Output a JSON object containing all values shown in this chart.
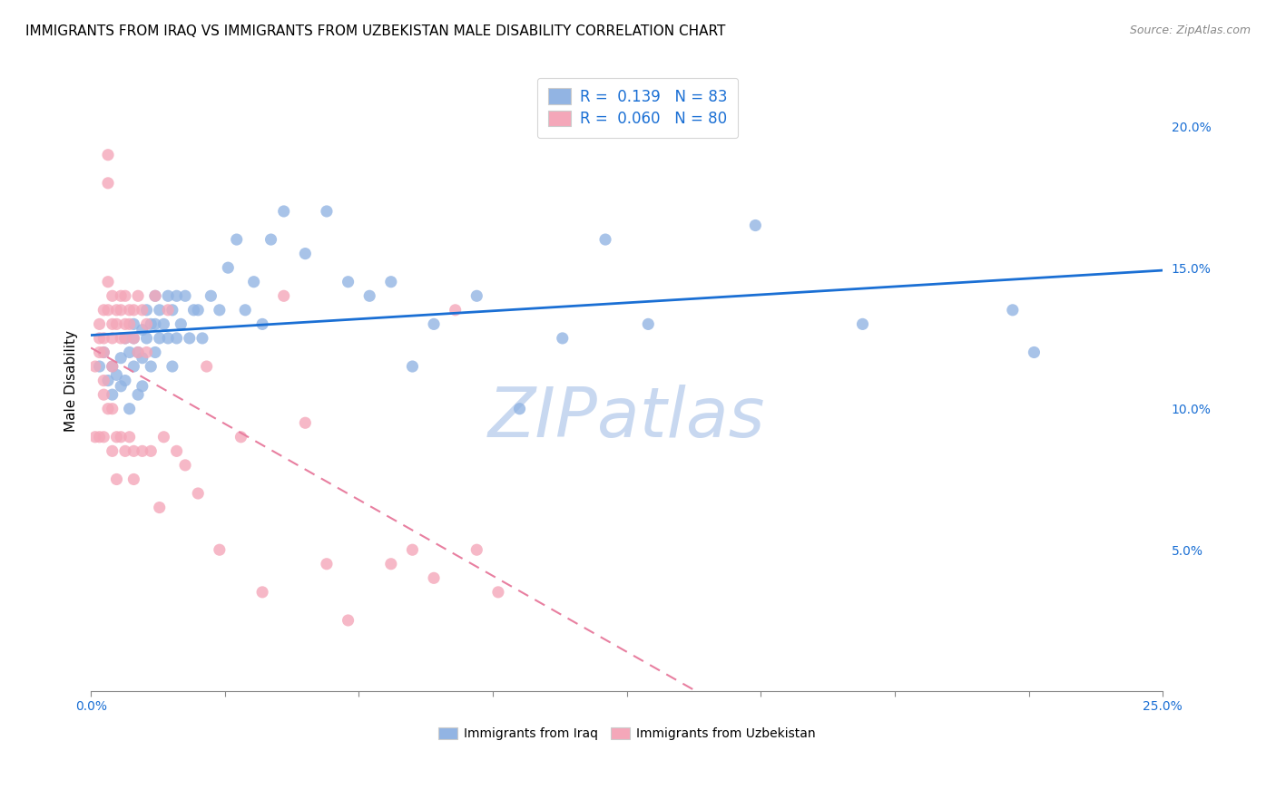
{
  "title": "IMMIGRANTS FROM IRAQ VS IMMIGRANTS FROM UZBEKISTAN MALE DISABILITY CORRELATION CHART",
  "source": "Source: ZipAtlas.com",
  "ylabel": "Male Disability",
  "xlim": [
    0.0,
    0.25
  ],
  "ylim": [
    0.0,
    0.22
  ],
  "xticks": [
    0.0,
    0.03125,
    0.0625,
    0.09375,
    0.125,
    0.15625,
    0.1875,
    0.21875,
    0.25
  ],
  "xtick_labels": [
    "0.0%",
    "",
    "",
    "",
    "",
    "",
    "",
    "",
    "25.0%"
  ],
  "yticks_right": [
    0.05,
    0.1,
    0.15,
    0.2
  ],
  "ytick_labels_right": [
    "5.0%",
    "10.0%",
    "15.0%",
    "20.0%"
  ],
  "legend_iraq_R": "0.139",
  "legend_iraq_N": "83",
  "legend_uzb_R": "0.060",
  "legend_uzb_N": "80",
  "iraq_color": "#92b4e3",
  "uzbekistan_color": "#f4a7b9",
  "iraq_line_color": "#1a6fd4",
  "uzbekistan_line_color": "#e87fa0",
  "watermark": "ZIPatlas",
  "watermark_color": "#c8d8f0",
  "iraq_scatter_x": [
    0.002,
    0.003,
    0.004,
    0.005,
    0.005,
    0.006,
    0.007,
    0.007,
    0.008,
    0.008,
    0.009,
    0.009,
    0.01,
    0.01,
    0.01,
    0.011,
    0.011,
    0.012,
    0.012,
    0.012,
    0.013,
    0.013,
    0.014,
    0.014,
    0.015,
    0.015,
    0.015,
    0.016,
    0.016,
    0.017,
    0.018,
    0.018,
    0.019,
    0.019,
    0.02,
    0.02,
    0.021,
    0.022,
    0.023,
    0.024,
    0.025,
    0.026,
    0.028,
    0.03,
    0.032,
    0.034,
    0.036,
    0.038,
    0.04,
    0.042,
    0.045,
    0.05,
    0.055,
    0.06,
    0.065,
    0.07,
    0.075,
    0.08,
    0.09,
    0.1,
    0.11,
    0.12,
    0.13,
    0.155,
    0.18,
    0.215,
    0.22
  ],
  "iraq_scatter_y": [
    0.115,
    0.12,
    0.11,
    0.115,
    0.105,
    0.112,
    0.118,
    0.108,
    0.125,
    0.11,
    0.12,
    0.1,
    0.13,
    0.125,
    0.115,
    0.12,
    0.105,
    0.128,
    0.118,
    0.108,
    0.135,
    0.125,
    0.13,
    0.115,
    0.14,
    0.13,
    0.12,
    0.135,
    0.125,
    0.13,
    0.14,
    0.125,
    0.135,
    0.115,
    0.14,
    0.125,
    0.13,
    0.14,
    0.125,
    0.135,
    0.135,
    0.125,
    0.14,
    0.135,
    0.15,
    0.16,
    0.135,
    0.145,
    0.13,
    0.16,
    0.17,
    0.155,
    0.17,
    0.145,
    0.14,
    0.145,
    0.115,
    0.13,
    0.14,
    0.1,
    0.125,
    0.16,
    0.13,
    0.165,
    0.13,
    0.135,
    0.12
  ],
  "uzb_scatter_x": [
    0.001,
    0.001,
    0.002,
    0.002,
    0.002,
    0.002,
    0.003,
    0.003,
    0.003,
    0.003,
    0.003,
    0.003,
    0.004,
    0.004,
    0.004,
    0.004,
    0.004,
    0.005,
    0.005,
    0.005,
    0.005,
    0.005,
    0.005,
    0.006,
    0.006,
    0.006,
    0.006,
    0.007,
    0.007,
    0.007,
    0.007,
    0.008,
    0.008,
    0.008,
    0.008,
    0.009,
    0.009,
    0.009,
    0.01,
    0.01,
    0.01,
    0.01,
    0.011,
    0.011,
    0.012,
    0.012,
    0.013,
    0.013,
    0.014,
    0.015,
    0.016,
    0.017,
    0.018,
    0.02,
    0.022,
    0.025,
    0.027,
    0.03,
    0.035,
    0.04,
    0.045,
    0.05,
    0.055,
    0.06,
    0.07,
    0.075,
    0.08,
    0.085,
    0.09,
    0.095
  ],
  "uzb_scatter_y": [
    0.115,
    0.09,
    0.13,
    0.125,
    0.12,
    0.09,
    0.135,
    0.125,
    0.12,
    0.11,
    0.105,
    0.09,
    0.19,
    0.18,
    0.145,
    0.135,
    0.1,
    0.14,
    0.13,
    0.125,
    0.115,
    0.1,
    0.085,
    0.135,
    0.13,
    0.09,
    0.075,
    0.14,
    0.135,
    0.125,
    0.09,
    0.14,
    0.13,
    0.125,
    0.085,
    0.135,
    0.13,
    0.09,
    0.135,
    0.125,
    0.085,
    0.075,
    0.14,
    0.12,
    0.135,
    0.085,
    0.13,
    0.12,
    0.085,
    0.14,
    0.065,
    0.09,
    0.135,
    0.085,
    0.08,
    0.07,
    0.115,
    0.05,
    0.09,
    0.035,
    0.14,
    0.095,
    0.045,
    0.025,
    0.045,
    0.05,
    0.04,
    0.135,
    0.05,
    0.035
  ],
  "title_fontsize": 11,
  "axis_fontsize": 11,
  "tick_fontsize": 10,
  "legend_fontsize": 12
}
